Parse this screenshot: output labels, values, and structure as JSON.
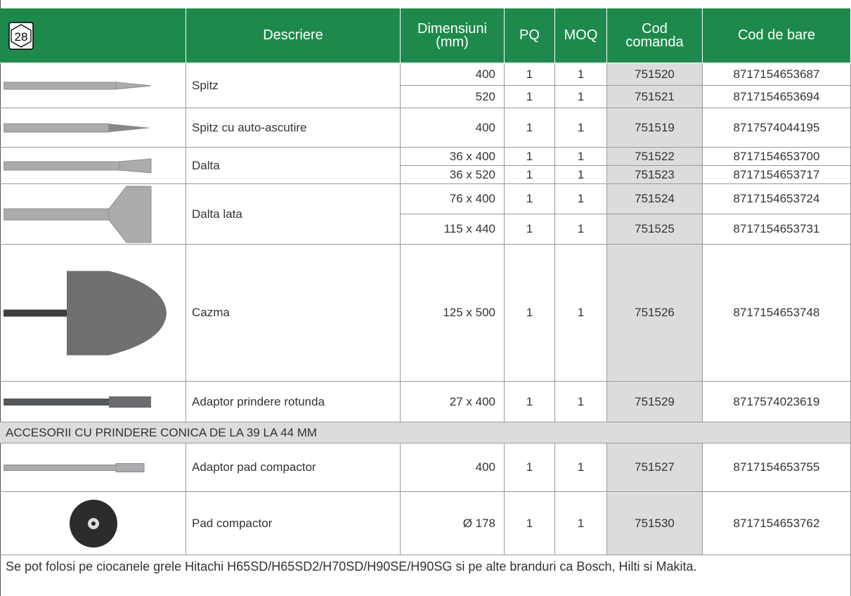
{
  "header": {
    "badge": "28",
    "columns": [
      [
        "Descriere"
      ],
      [
        "Dimensiuni",
        "(mm)"
      ],
      [
        "PQ"
      ],
      [
        "MOQ"
      ],
      [
        "Cod",
        "comanda"
      ],
      [
        "Cod de bare"
      ]
    ]
  },
  "products": [
    {
      "name": "Spitz",
      "rows": [
        [
          "400",
          "1",
          "1",
          "751520",
          "8717154653687"
        ],
        [
          "520",
          "1",
          "1",
          "751521",
          "8717154653694"
        ]
      ]
    },
    {
      "name": "Spitz cu auto-ascutire",
      "rows": [
        [
          "400",
          "1",
          "1",
          "751519",
          "8717574044195"
        ]
      ]
    },
    {
      "name": "Dalta",
      "rows": [
        [
          "36 x 400",
          "1",
          "1",
          "751522",
          "8717154653700"
        ],
        [
          "36 x 520",
          "1",
          "1",
          "751523",
          "8717154653717"
        ]
      ]
    },
    {
      "name": "Dalta lata",
      "rows": [
        [
          "76 x 400",
          "1",
          "1",
          "751524",
          "8717154653724"
        ],
        [
          "115 x 440",
          "1",
          "1",
          "751525",
          "8717154653731"
        ]
      ]
    },
    {
      "name": "Cazma",
      "rows": [
        [
          "125 x 500",
          "1",
          "1",
          "751526",
          "8717154653748"
        ]
      ]
    },
    {
      "name": "Adaptor prindere rotunda",
      "rows": [
        [
          "27 x 400",
          "1",
          "1",
          "751529",
          "8717574023619"
        ]
      ]
    }
  ],
  "section_title": "ACCESORII CU PRINDERE CONICA DE LA 39 LA 44 MM",
  "accessories": [
    {
      "name": "Adaptor pad compactor",
      "rows": [
        [
          "400",
          "1",
          "1",
          "751527",
          "8717154653755"
        ]
      ]
    },
    {
      "name": "Pad compactor",
      "rows": [
        [
          "Ø 178",
          "1",
          "1",
          "751530",
          "8717154653762"
        ]
      ]
    }
  ],
  "footer": "Se pot folosi pe ciocanele grele Hitachi H65SD/H65SD2/H70SD/H90SE/H90SG si pe alte branduri ca Bosch, Hilti si Makita."
}
